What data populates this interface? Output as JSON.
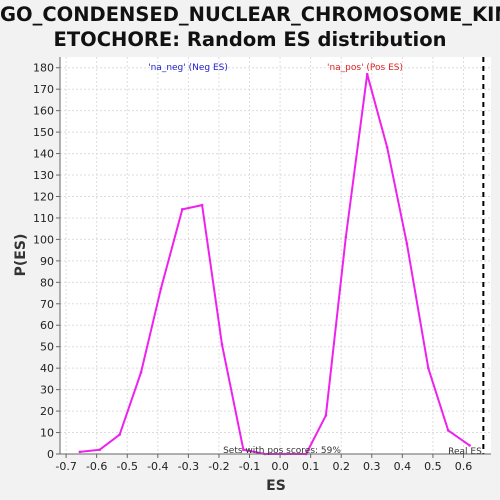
{
  "title_lines": [
    "GO_CONDENSED_NUCLEAR_CHROMOSOME_KIN",
    "ETOCHORE: Random ES distribution"
  ],
  "colors": {
    "series": "#ee22ee",
    "neg_label": "#2222cc",
    "pos_label": "#dd2222",
    "real_es_line": "#000000",
    "grid": "#dddddd",
    "plot_bg": "#ffffff"
  },
  "annotations": {
    "neg_label": "'na_neg' (Neg ES)",
    "pos_label": "'na_pos' (Pos ES)",
    "pos_scores": "Sets with pos scores: 59%",
    "real_es": "Real ES"
  },
  "chart_data": {
    "type": "line",
    "title": "GO_CONDENSED_NUCLEAR_CHROMOSOME_KINETOCHORE: Random ES distribution",
    "xlabel": "ES",
    "ylabel": "P(ES)",
    "xlim": [
      -0.72,
      0.69
    ],
    "ylim": [
      0,
      185
    ],
    "x_ticks": [
      -0.7,
      -0.6,
      -0.5,
      -0.4,
      -0.3,
      -0.2,
      -0.1,
      0.0,
      0.1,
      0.2,
      0.3,
      0.4,
      0.5,
      0.6
    ],
    "x_tick_labels": [
      "-0.7",
      "-0.6",
      "-0.5",
      "-0.4",
      "-0.3",
      "-0.2",
      "-0.1",
      "0.0",
      "0.1",
      "0.2",
      "0.3",
      "0.4",
      "0.5",
      "0.6"
    ],
    "y_ticks": [
      0,
      10,
      20,
      30,
      40,
      50,
      60,
      70,
      80,
      90,
      100,
      110,
      120,
      130,
      140,
      150,
      160,
      170,
      180
    ],
    "y_tick_labels": [
      "0",
      "10",
      "20",
      "30",
      "40",
      "50",
      "60",
      "70",
      "80",
      "90",
      "100",
      "110",
      "120",
      "130",
      "140",
      "150",
      "160",
      "170",
      "180"
    ],
    "grid": true,
    "series": [
      {
        "x": [
          -0.655,
          -0.59,
          -0.525,
          -0.455,
          -0.39,
          -0.32,
          -0.255,
          -0.19,
          -0.12,
          -0.05,
          0.015,
          0.085,
          0.15,
          0.215,
          0.285,
          0.35,
          0.415,
          0.485,
          0.55,
          0.62
        ],
        "y": [
          1,
          2,
          9,
          38,
          77,
          114,
          116,
          51,
          2,
          0,
          0,
          0,
          18,
          101,
          177,
          143,
          98,
          40,
          11,
          4
        ]
      }
    ],
    "real_es": 0.665
  }
}
